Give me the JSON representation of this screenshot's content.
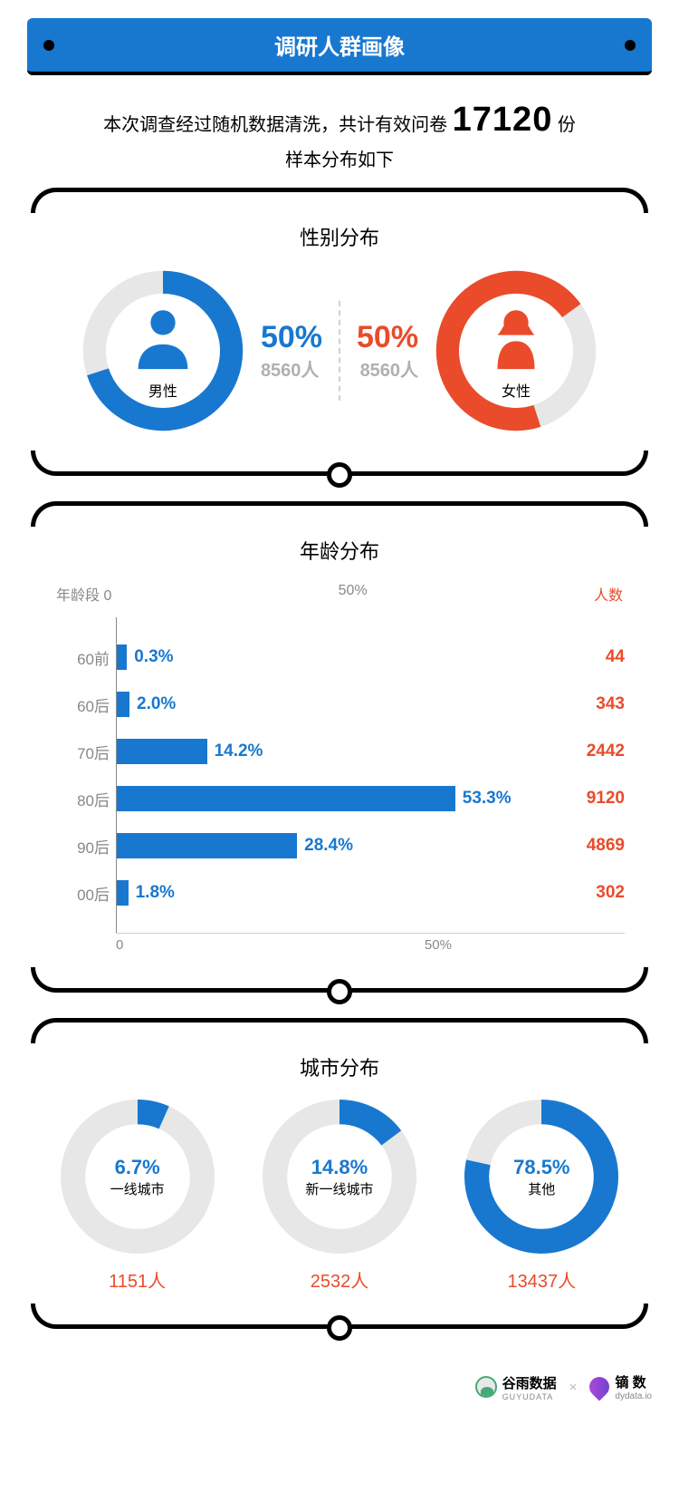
{
  "colors": {
    "blue": "#1878d0",
    "red": "#ea4b2a",
    "grey": "#b0b0b0",
    "text_grey": "#888888",
    "ring_grey": "#e7e7e7",
    "black": "#000000",
    "white": "#ffffff"
  },
  "title": "调研人群画像",
  "intro": {
    "prefix": "本次调查经过随机数据清洗，共计有效问卷",
    "total": "17120",
    "suffix": "份",
    "line2": "样本分布如下"
  },
  "gender": {
    "title": "性别分布",
    "male": {
      "label": "男性",
      "pct": "50%",
      "count": "8560人",
      "icon": "male-icon",
      "ring_pct": 70,
      "color": "#1878d0"
    },
    "female": {
      "label": "女性",
      "pct": "50%",
      "count": "8560人",
      "icon": "female-icon",
      "ring_pct": 70,
      "color": "#ea4b2a"
    }
  },
  "age": {
    "title": "年龄分布",
    "axis_label_left": "年龄段",
    "axis_zero": "0",
    "axis_mid": "50%",
    "count_header": "人数",
    "bar_color": "#1878d0",
    "value_color": "#1878d0",
    "count_color": "#ea4b2a",
    "max_pct": 80,
    "rows": [
      {
        "cat": "60前",
        "pct": 0.3,
        "pct_label": "0.3%",
        "count": "44"
      },
      {
        "cat": "60后",
        "pct": 2.0,
        "pct_label": "2.0%",
        "count": "343"
      },
      {
        "cat": "70后",
        "pct": 14.2,
        "pct_label": "14.2%",
        "count": "2442"
      },
      {
        "cat": "80后",
        "pct": 53.3,
        "pct_label": "53.3%",
        "count": "9120"
      },
      {
        "cat": "90后",
        "pct": 28.4,
        "pct_label": "28.4%",
        "count": "4869"
      },
      {
        "cat": "00后",
        "pct": 1.8,
        "pct_label": "1.8%",
        "count": "302"
      }
    ]
  },
  "city": {
    "title": "城市分布",
    "ring_bg": "#e7e7e7",
    "ring_fg": "#1878d0",
    "items": [
      {
        "pct": 6.7,
        "pct_label": "6.7%",
        "label": "一线城市",
        "count": "1151人"
      },
      {
        "pct": 14.8,
        "pct_label": "14.8%",
        "label": "新一线城市",
        "count": "2532人"
      },
      {
        "pct": 78.5,
        "pct_label": "78.5%",
        "label": "其他",
        "count": "13437人"
      }
    ]
  },
  "footer": {
    "brand1": {
      "name": "谷雨数据",
      "sub": "GUYUDATA"
    },
    "sep": "×",
    "brand2": {
      "name": "镝 数",
      "sub": "dydata.io"
    }
  }
}
